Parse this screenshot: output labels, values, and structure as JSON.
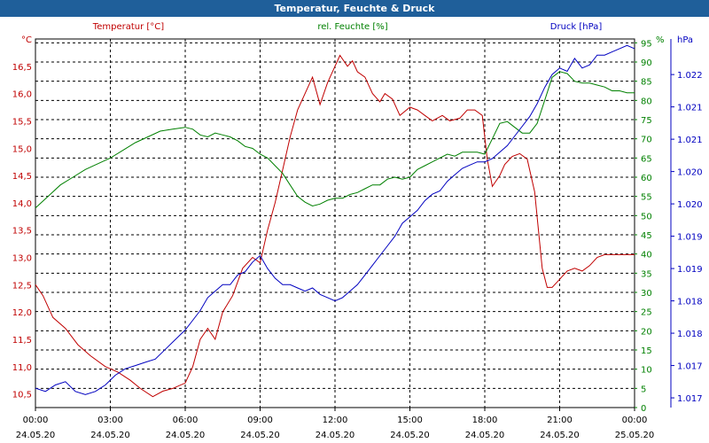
{
  "chart_data": {
    "type": "line",
    "title": "Temperatur, Feuchte & Druck",
    "x_ticks": [
      {
        "time": "00:00",
        "date": "24.05.20"
      },
      {
        "time": "03:00",
        "date": "24.05.20"
      },
      {
        "time": "06:00",
        "date": "24.05.20"
      },
      {
        "time": "09:00",
        "date": "24.05.20"
      },
      {
        "time": "12:00",
        "date": "24.05.20"
      },
      {
        "time": "15:00",
        "date": "24.05.20"
      },
      {
        "time": "18:00",
        "date": "24.05.20"
      },
      {
        "time": "21:00",
        "date": "24.05.20"
      },
      {
        "time": "00:00",
        "date": "25.05.20"
      }
    ],
    "x_range_hours": [
      0,
      24
    ],
    "grid": true,
    "axes": {
      "temperature": {
        "label": "Temperatur [°C]",
        "unit": "°C",
        "min": 10.25,
        "max": 17.0,
        "ticks": [
          "16,5",
          "16,0",
          "15,5",
          "15,0",
          "14,5",
          "14,0",
          "13,5",
          "13,0",
          "12,5",
          "12,0",
          "11,5",
          "11,0",
          "10,5"
        ],
        "tick_values": [
          16.5,
          16.0,
          15.5,
          15.0,
          14.5,
          14.0,
          13.5,
          13.0,
          12.5,
          12.0,
          11.5,
          11.0,
          10.5
        ],
        "color": "#c00000"
      },
      "humidity": {
        "label": "rel. Feuchte [%]",
        "unit": "%",
        "min": 0,
        "max": 96,
        "ticks": [
          "95",
          "90",
          "85",
          "80",
          "75",
          "70",
          "65",
          "60",
          "55",
          "50",
          "45",
          "40",
          "35",
          "30",
          "25",
          "20",
          "15",
          "10",
          "5",
          "0"
        ],
        "tick_values": [
          95,
          90,
          85,
          80,
          75,
          70,
          65,
          60,
          55,
          50,
          45,
          40,
          35,
          30,
          25,
          20,
          15,
          10,
          5,
          0
        ],
        "color": "#008000"
      },
      "pressure": {
        "label": "Druck [hPa]",
        "unit": "hPa",
        "min": 1016.85,
        "max": 1022.55,
        "ticks": [
          "1.022",
          "1.021",
          "1.021",
          "1.020",
          "1.020",
          "1.019",
          "1.019",
          "1.018",
          "1.018",
          "1.017",
          "1.017"
        ],
        "tick_values": [
          1022.0,
          1021.5,
          1021.0,
          1020.5,
          1020.0,
          1019.5,
          1019.0,
          1018.5,
          1018.0,
          1017.5,
          1017.0
        ],
        "color": "#0000c0"
      }
    },
    "series": [
      {
        "name": "Temperatur [°C]",
        "axis": "temperature",
        "color": "#c00000",
        "x": [
          0,
          0.3,
          0.7,
          1.2,
          1.7,
          2.2,
          2.8,
          3.3,
          3.8,
          4.2,
          4.7,
          5.1,
          5.5,
          6.0,
          6.3,
          6.6,
          6.9,
          7.2,
          7.5,
          7.9,
          8.3,
          8.7,
          9.0,
          9.3,
          9.6,
          9.9,
          10.2,
          10.5,
          10.8,
          11.1,
          11.4,
          11.7,
          12.0,
          12.2,
          12.5,
          12.7,
          12.9,
          13.2,
          13.5,
          13.8,
          14.0,
          14.3,
          14.6,
          15.0,
          15.3,
          15.6,
          15.9,
          16.3,
          16.6,
          17.0,
          17.3,
          17.6,
          17.9,
          18.1,
          18.3,
          18.6,
          18.8,
          19.1,
          19.4,
          19.7,
          20.0,
          20.3,
          20.5,
          20.7,
          20.9,
          21.1,
          21.3,
          21.6,
          21.9,
          22.2,
          22.5,
          22.8,
          23.1,
          23.4,
          23.7,
          24.0
        ],
        "y": [
          12.5,
          12.3,
          11.9,
          11.7,
          11.4,
          11.2,
          11.0,
          10.9,
          10.75,
          10.6,
          10.45,
          10.55,
          10.6,
          10.7,
          11.0,
          11.5,
          11.7,
          11.5,
          12.0,
          12.3,
          12.8,
          13.0,
          12.9,
          13.5,
          14.0,
          14.6,
          15.2,
          15.7,
          16.0,
          16.3,
          15.8,
          16.2,
          16.5,
          16.7,
          16.5,
          16.6,
          16.4,
          16.3,
          16.0,
          15.85,
          16.0,
          15.9,
          15.6,
          15.75,
          15.7,
          15.6,
          15.5,
          15.6,
          15.5,
          15.55,
          15.7,
          15.7,
          15.6,
          14.8,
          14.3,
          14.5,
          14.7,
          14.85,
          14.9,
          14.8,
          14.2,
          12.8,
          12.45,
          12.45,
          12.55,
          12.65,
          12.75,
          12.8,
          12.75,
          12.85,
          13.0,
          13.05,
          13.05,
          13.05,
          13.05,
          13.05
        ]
      },
      {
        "name": "rel. Feuchte [%]",
        "axis": "humidity",
        "color": "#008000",
        "x": [
          0,
          0.5,
          1.0,
          1.5,
          2.0,
          2.5,
          3.0,
          3.5,
          4.0,
          4.5,
          5.0,
          5.5,
          6.0,
          6.3,
          6.6,
          6.9,
          7.2,
          7.5,
          7.8,
          8.1,
          8.4,
          8.7,
          9.0,
          9.3,
          9.6,
          9.9,
          10.2,
          10.5,
          10.8,
          11.1,
          11.4,
          11.7,
          12.0,
          12.3,
          12.6,
          12.9,
          13.2,
          13.5,
          13.8,
          14.1,
          14.4,
          14.7,
          15.0,
          15.3,
          15.6,
          15.9,
          16.2,
          16.5,
          16.8,
          17.1,
          17.4,
          17.7,
          18.0,
          18.3,
          18.6,
          18.9,
          19.2,
          19.5,
          19.8,
          20.1,
          20.4,
          20.7,
          21.0,
          21.3,
          21.6,
          21.9,
          22.2,
          22.5,
          22.8,
          23.1,
          23.4,
          23.7,
          24.0
        ],
        "y": [
          52,
          55,
          58,
          60,
          62,
          63.5,
          65,
          67,
          69,
          70.5,
          72,
          72.5,
          73,
          72.5,
          71,
          70.5,
          71.5,
          71,
          70.5,
          69.5,
          68,
          67.5,
          66,
          65,
          63,
          61,
          58,
          55,
          53.5,
          52.5,
          53,
          54,
          54.5,
          54.5,
          55.5,
          56,
          57,
          58,
          58,
          59.5,
          60,
          59.5,
          60,
          62,
          63,
          64,
          65,
          66,
          65.5,
          66.5,
          66.5,
          66.5,
          66,
          70,
          74,
          74.5,
          73,
          71.5,
          71.5,
          74,
          80,
          86,
          87.5,
          87,
          85,
          84.5,
          84.5,
          84,
          83.5,
          82.5,
          82.5,
          82,
          82
        ]
      },
      {
        "name": "Druck [hPa]",
        "axis": "pressure",
        "color": "#0000c0",
        "x": [
          0,
          0.4,
          0.8,
          1.2,
          1.6,
          2.0,
          2.4,
          2.8,
          3.2,
          3.6,
          4.0,
          4.4,
          4.8,
          5.2,
          5.6,
          6.0,
          6.3,
          6.6,
          6.9,
          7.2,
          7.5,
          7.8,
          8.1,
          8.4,
          8.7,
          9.0,
          9.3,
          9.6,
          9.9,
          10.2,
          10.5,
          10.8,
          11.1,
          11.4,
          11.7,
          12.0,
          12.3,
          12.6,
          12.9,
          13.2,
          13.5,
          13.8,
          14.1,
          14.4,
          14.7,
          15.0,
          15.3,
          15.6,
          15.9,
          16.2,
          16.5,
          16.8,
          17.1,
          17.4,
          17.7,
          18.0,
          18.3,
          18.6,
          18.9,
          19.2,
          19.5,
          19.8,
          20.1,
          20.4,
          20.7,
          21.0,
          21.3,
          21.6,
          21.9,
          22.2,
          22.5,
          22.8,
          23.1,
          23.4,
          23.7,
          24.0
        ],
        "y": [
          1017.15,
          1017.1,
          1017.2,
          1017.25,
          1017.1,
          1017.05,
          1017.1,
          1017.2,
          1017.35,
          1017.45,
          1017.5,
          1017.55,
          1017.6,
          1017.75,
          1017.9,
          1018.05,
          1018.2,
          1018.35,
          1018.55,
          1018.65,
          1018.75,
          1018.75,
          1018.9,
          1018.95,
          1019.1,
          1019.2,
          1019.0,
          1018.85,
          1018.75,
          1018.75,
          1018.7,
          1018.65,
          1018.7,
          1018.6,
          1018.55,
          1018.5,
          1018.55,
          1018.65,
          1018.75,
          1018.9,
          1019.05,
          1019.2,
          1019.35,
          1019.5,
          1019.7,
          1019.8,
          1019.9,
          1020.05,
          1020.15,
          1020.2,
          1020.35,
          1020.45,
          1020.55,
          1020.6,
          1020.65,
          1020.65,
          1020.7,
          1020.8,
          1020.9,
          1021.05,
          1021.2,
          1021.35,
          1021.55,
          1021.8,
          1022.0,
          1022.1,
          1022.05,
          1022.25,
          1022.1,
          1022.15,
          1022.3,
          1022.3,
          1022.35,
          1022.4,
          1022.45,
          1022.4
        ]
      }
    ]
  }
}
